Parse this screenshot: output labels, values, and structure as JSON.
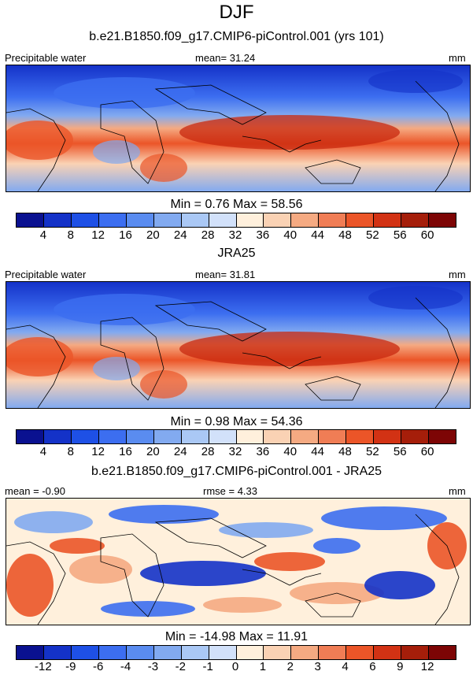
{
  "page": {
    "title": "DJF"
  },
  "panels": [
    {
      "title": "b.e21.B1850.f09_g17.CMIP6-piControl.001 (yrs 101)",
      "left": "Precipitable water",
      "center": "mean=  31.24",
      "right": "mm",
      "minmax": "Min =   0.76 Max =  58.56"
    },
    {
      "title": "JRA25",
      "left": "Precipitable water",
      "center": "mean=  31.81",
      "right": "mm",
      "minmax": "Min =   0.98 Max =  54.36"
    },
    {
      "title": "b.e21.B1850.f09_g17.CMIP6-piControl.001 - JRA25",
      "left": "mean =  -0.90",
      "center": "rmse =  4.33",
      "right": "mm",
      "minmax": "Min = -14.98 Max =  11.91"
    }
  ],
  "chart_data": [
    {
      "type": "heatmap",
      "title": "b.e21.B1850.f09_g17.CMIP6-piControl.001 (yrs 101)",
      "variable": "Precipitable water",
      "units": "mm",
      "mean": 31.24,
      "min": 0.76,
      "max": 58.56,
      "levels": [
        "4",
        "8",
        "12",
        "16",
        "20",
        "24",
        "28",
        "32",
        "36",
        "40",
        "44",
        "48",
        "52",
        "56",
        "60"
      ]
    },
    {
      "type": "heatmap",
      "title": "JRA25",
      "variable": "Precipitable water",
      "units": "mm",
      "mean": 31.81,
      "min": 0.98,
      "max": 54.36,
      "levels": [
        "4",
        "8",
        "12",
        "16",
        "20",
        "24",
        "28",
        "32",
        "36",
        "40",
        "44",
        "48",
        "52",
        "56",
        "60"
      ]
    },
    {
      "type": "heatmap",
      "title": "b.e21.B1850.f09_g17.CMIP6-piControl.001 - JRA25",
      "units": "mm",
      "mean": -0.9,
      "rmse": 4.33,
      "min": -14.98,
      "max": 11.91,
      "levels": [
        "-12",
        "-9",
        "-6",
        "-4",
        "-3",
        "-2",
        "-1",
        "0",
        "1",
        "2",
        "3",
        "4",
        "6",
        "9",
        "12"
      ]
    }
  ],
  "colorbar": {
    "colors": [
      "#0a1190",
      "#1432c8",
      "#1e50e6",
      "#3c6ef0",
      "#5a8cf0",
      "#82aaf0",
      "#aac8f5",
      "#d2e1fa",
      "#fff0dc",
      "#fad2b4",
      "#f5aa82",
      "#f07d55",
      "#eb5528",
      "#d23214",
      "#a51e0a",
      "#7d0505"
    ]
  },
  "colors": {
    "dark_blue": "#1432c8",
    "blue": "#3c6ef0",
    "mid_blue": "#82aaf0",
    "pale": "#fad2b4",
    "light_red": "#f5aa82",
    "red": "#eb5528",
    "dark_red": "#c8280f"
  }
}
